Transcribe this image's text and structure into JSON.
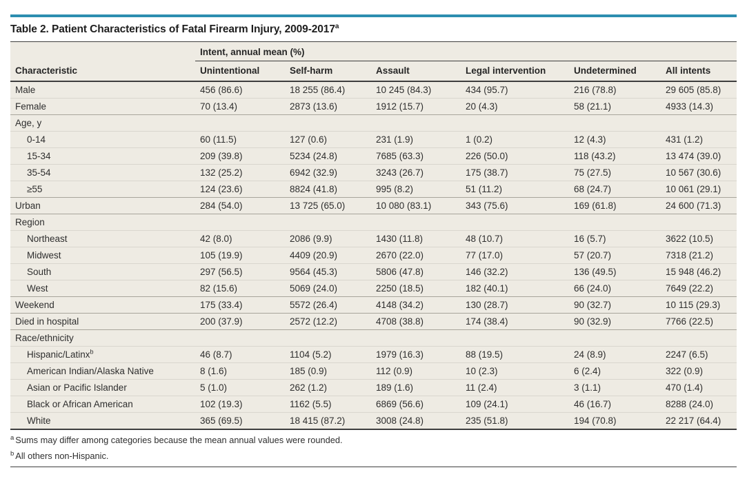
{
  "accent_color": "#2d8eb0",
  "title": {
    "text": "Table 2. Patient Characteristics of Fatal Firearm Injury, 2009-2017",
    "superscript": "a"
  },
  "table": {
    "spanner": "Intent, annual mean (%)",
    "col_header": "Characteristic",
    "columns": [
      "Unintentional",
      "Self-harm",
      "Assault",
      "Legal intervention",
      "Undetermined",
      "All intents"
    ],
    "rows": [
      {
        "label": "Male",
        "type": "data",
        "indent": false,
        "divider": "none",
        "values": [
          "456 (86.6)",
          "18 255 (86.4)",
          "10 245 (84.3)",
          "434 (95.7)",
          "216 (78.8)",
          "29 605 (85.8)"
        ]
      },
      {
        "label": "Female",
        "type": "data",
        "indent": false,
        "divider": "light",
        "values": [
          "70 (13.4)",
          "2873 (13.6)",
          "1912 (15.7)",
          "20 (4.3)",
          "58 (21.1)",
          "4933 (14.3)"
        ]
      },
      {
        "label": "Age, y",
        "type": "section",
        "indent": false,
        "divider": "strong",
        "values": [
          "",
          "",
          "",
          "",
          "",
          ""
        ]
      },
      {
        "label": "0-14",
        "type": "data",
        "indent": true,
        "divider": "light",
        "values": [
          "60 (11.5)",
          "127 (0.6)",
          "231 (1.9)",
          "1 (0.2)",
          "12 (4.3)",
          "431 (1.2)"
        ]
      },
      {
        "label": "15-34",
        "type": "data",
        "indent": true,
        "divider": "light",
        "values": [
          "209 (39.8)",
          "5234 (24.8)",
          "7685 (63.3)",
          "226 (50.0)",
          "118 (43.2)",
          "13 474 (39.0)"
        ]
      },
      {
        "label": "35-54",
        "type": "data",
        "indent": true,
        "divider": "light",
        "values": [
          "132 (25.2)",
          "6942 (32.9)",
          "3243 (26.7)",
          "175 (38.7)",
          "75 (27.5)",
          "10 567 (30.6)"
        ]
      },
      {
        "label": "≥55",
        "type": "data",
        "indent": true,
        "divider": "light",
        "values": [
          "124 (23.6)",
          "8824 (41.8)",
          "995 (8.2)",
          "51 (11.2)",
          "68 (24.7)",
          "10 061 (29.1)"
        ]
      },
      {
        "label": "Urban",
        "type": "data",
        "indent": false,
        "divider": "strong",
        "values": [
          "284 (54.0)",
          "13 725 (65.0)",
          "10 080 (83.1)",
          "343 (75.6)",
          "169 (61.8)",
          "24 600 (71.3)"
        ]
      },
      {
        "label": "Region",
        "type": "section",
        "indent": false,
        "divider": "strong",
        "values": [
          "",
          "",
          "",
          "",
          "",
          ""
        ]
      },
      {
        "label": "Northeast",
        "type": "data",
        "indent": true,
        "divider": "light",
        "values": [
          "42 (8.0)",
          "2086 (9.9)",
          "1430 (11.8)",
          "48 (10.7)",
          "16 (5.7)",
          "3622 (10.5)"
        ]
      },
      {
        "label": "Midwest",
        "type": "data",
        "indent": true,
        "divider": "light",
        "values": [
          "105 (19.9)",
          "4409 (20.9)",
          "2670 (22.0)",
          "77 (17.0)",
          "57 (20.7)",
          "7318 (21.2)"
        ]
      },
      {
        "label": "South",
        "type": "data",
        "indent": true,
        "divider": "light",
        "values": [
          "297 (56.5)",
          "9564 (45.3)",
          "5806 (47.8)",
          "146 (32.2)",
          "136 (49.5)",
          "15 948 (46.2)"
        ]
      },
      {
        "label": "West",
        "type": "data",
        "indent": true,
        "divider": "light",
        "values": [
          "82 (15.6)",
          "5069 (24.0)",
          "2250 (18.5)",
          "182 (40.1)",
          "66 (24.0)",
          "7649 (22.2)"
        ]
      },
      {
        "label": "Weekend",
        "type": "data",
        "indent": false,
        "divider": "strong",
        "values": [
          "175 (33.4)",
          "5572 (26.4)",
          "4148 (34.2)",
          "130 (28.7)",
          "90 (32.7)",
          "10 115 (29.3)"
        ]
      },
      {
        "label": "Died in hospital",
        "type": "data",
        "indent": false,
        "divider": "strong",
        "values": [
          "200 (37.9)",
          "2572 (12.2)",
          "4708 (38.8)",
          "174 (38.4)",
          "90 (32.9)",
          "7766 (22.5)"
        ]
      },
      {
        "label": "Race/ethnicity",
        "type": "section",
        "indent": false,
        "divider": "strong",
        "values": [
          "",
          "",
          "",
          "",
          "",
          ""
        ]
      },
      {
        "label": "Hispanic/Latinx",
        "sup": "b",
        "type": "data",
        "indent": true,
        "divider": "light",
        "values": [
          "46 (8.7)",
          "1104 (5.2)",
          "1979 (16.3)",
          "88 (19.5)",
          "24 (8.9)",
          "2247 (6.5)"
        ]
      },
      {
        "label": "American Indian/Alaska Native",
        "type": "data",
        "indent": true,
        "divider": "light",
        "values": [
          "8 (1.6)",
          "185 (0.9)",
          "112 (0.9)",
          "10 (2.3)",
          "6 (2.4)",
          "322 (0.9)"
        ]
      },
      {
        "label": "Asian or Pacific Islander",
        "type": "data",
        "indent": true,
        "divider": "light",
        "values": [
          "5 (1.0)",
          "262 (1.2)",
          "189 (1.6)",
          "11 (2.4)",
          "3 (1.1)",
          "470 (1.4)"
        ]
      },
      {
        "label": "Black or African American",
        "type": "data",
        "indent": true,
        "divider": "light",
        "values": [
          "102 (19.3)",
          "1162 (5.5)",
          "6869 (56.6)",
          "109 (24.1)",
          "46 (16.7)",
          "8288 (24.0)"
        ]
      },
      {
        "label": "White",
        "type": "data",
        "indent": true,
        "divider": "light",
        "values": [
          "365 (69.5)",
          "18 415 (87.2)",
          "3008 (24.8)",
          "235 (51.8)",
          "194 (70.8)",
          "22 217 (64.4)"
        ]
      }
    ]
  },
  "footnotes": [
    {
      "marker": "a",
      "text": "Sums may differ among categories because the mean annual values were rounded."
    },
    {
      "marker": "b",
      "text": "All others non-Hispanic."
    }
  ]
}
